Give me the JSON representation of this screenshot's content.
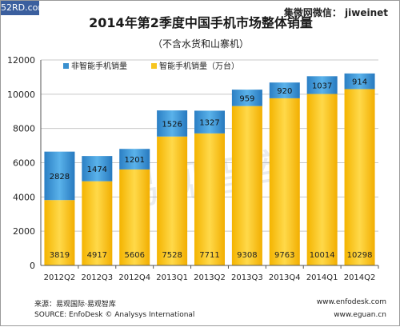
{
  "badge": "52RD.com",
  "wechat": "集微网微信：  jiweinet",
  "footer": {
    "source_cn": "来源：易观国际·易观智库",
    "source_en": "SOURCE: EnfoDesk © Analysys International",
    "url1": "www.enfodesk.com",
    "url2": "www.eguan.cn"
  },
  "watermark": "易观智库",
  "colors": {
    "smart": "#f7c520",
    "nonsmart": "#3a90cf",
    "grid": "#c8c8c8",
    "axis": "#555555"
  },
  "chart_data": {
    "type": "bar",
    "stacked": true,
    "title": "2014年第2季度中国手机市场整体销量",
    "subtitle": "（不含水货和山寨机）",
    "categories": [
      "2012Q2",
      "2012Q3",
      "2012Q4",
      "2013Q1",
      "2013Q2",
      "2013Q3",
      "2013Q4",
      "2014Q1",
      "2014Q2"
    ],
    "series": [
      {
        "name": "智能手机销量（万台）",
        "values": [
          3819,
          4917,
          5606,
          7528,
          7711,
          9308,
          9763,
          10014,
          10298
        ]
      },
      {
        "name": "非智能手机销量",
        "values": [
          2828,
          1474,
          1201,
          1526,
          1327,
          959,
          920,
          1037,
          914
        ]
      }
    ],
    "ylim": [
      0,
      12000
    ],
    "yticks": [
      0,
      2000,
      4000,
      6000,
      8000,
      10000,
      12000
    ],
    "grid": true,
    "legend_position": "top-left"
  }
}
